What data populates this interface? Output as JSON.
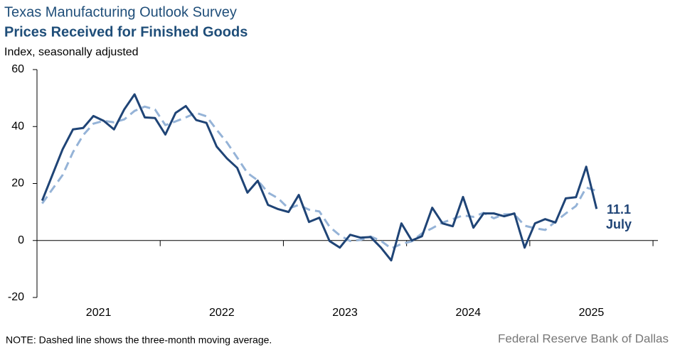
{
  "chart_data": {
    "type": "line",
    "title": "Texas Manufacturing Outlook Survey",
    "subtitle": "Prices Received for Finished Goods",
    "y_axis_label": "Index, seasonally adjusted",
    "note": "NOTE: Dashed line shows the three-month  moving average.",
    "source": "Federal Reserve Bank of Dallas",
    "annotation": "July",
    "x": [
      2021.042,
      2021.125,
      2021.208,
      2021.292,
      2021.375,
      2021.458,
      2021.542,
      2021.625,
      2021.708,
      2021.792,
      2021.875,
      2021.958,
      2022.042,
      2022.125,
      2022.208,
      2022.292,
      2022.375,
      2022.458,
      2022.542,
      2022.625,
      2022.708,
      2022.792,
      2022.875,
      2022.958,
      2023.042,
      2023.125,
      2023.208,
      2023.292,
      2023.375,
      2023.458,
      2023.542,
      2023.625,
      2023.708,
      2023.792,
      2023.875,
      2023.958,
      2024.042,
      2024.125,
      2024.208,
      2024.292,
      2024.375,
      2024.458,
      2024.542,
      2024.625,
      2024.708,
      2024.792,
      2024.875,
      2024.958,
      2025.042,
      2025.125,
      2025.208,
      2025.292,
      2025.375,
      2025.458,
      2025.542
    ],
    "series": [
      {
        "name": "Index",
        "color": "#1f4476",
        "dashed": false,
        "values": [
          14,
          23,
          32,
          39,
          39.5,
          43.7,
          42,
          39,
          46,
          51.3,
          43.2,
          43,
          37.2,
          44.8,
          47.2,
          42.3,
          41.3,
          33,
          28.8,
          25.5,
          16.8,
          21,
          12.5,
          11,
          10,
          16,
          6.5,
          8,
          -0.2,
          -2.5,
          2,
          1,
          1.2,
          -2.5,
          -7,
          6,
          0,
          1.5,
          11.5,
          6,
          5,
          15.3,
          4.5,
          9.5,
          9.5,
          8.5,
          9.5,
          -2.5,
          6,
          7.5,
          6.3,
          14.8,
          15.2,
          25.9,
          11.1
        ]
      },
      {
        "name": "Three-month moving average",
        "color": "#95b3d7",
        "dashed": true,
        "values": [
          13,
          18,
          23,
          31,
          37,
          41,
          42,
          41.5,
          42.5,
          45.5,
          47,
          46,
          40.5,
          41.8,
          43.2,
          44.8,
          43.6,
          38.9,
          34.4,
          29.1,
          23.7,
          21.1,
          16.8,
          14.8,
          11.2,
          12.5,
          10.8,
          10.2,
          4.8,
          1.8,
          -0.2,
          0.2,
          1.4,
          -0.1,
          -2.8,
          -1.2,
          -0.3,
          2.5,
          4.3,
          6.3,
          7.5,
          8.8,
          8.3,
          9.7,
          7.8,
          9.2,
          9.2,
          5.2,
          4.3,
          3.7,
          6.6,
          9.5,
          12.1,
          18.6,
          17.4
        ]
      }
    ],
    "xlim": [
      2021,
      2026.04
    ],
    "xtick_marks": [
      2021,
      2022,
      2023,
      2024,
      2025,
      2026
    ],
    "xticks": [
      {
        "value": 2021.5,
        "label": "2021"
      },
      {
        "value": 2022.5,
        "label": "2022"
      },
      {
        "value": 2023.5,
        "label": "2023"
      },
      {
        "value": 2024.5,
        "label": "2024"
      },
      {
        "value": 2025.5,
        "label": "2025"
      }
    ],
    "ylim": [
      -20,
      60
    ],
    "yticks": [
      -20,
      0,
      20,
      40,
      60
    ]
  }
}
